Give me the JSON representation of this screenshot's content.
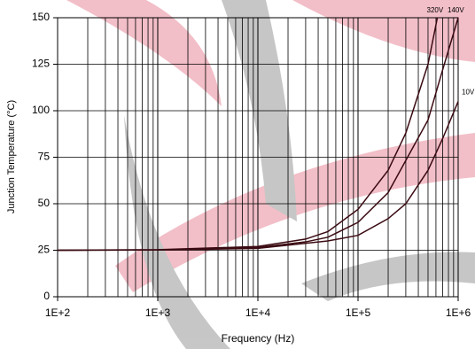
{
  "chart_data": {
    "type": "line",
    "xscale": "log",
    "grid": true,
    "minor_grid": true,
    "xlabel": "Frequency (Hz)",
    "ylabel": "Junction Temperature (°C)",
    "xlim": [
      100,
      1000000
    ],
    "ylim": [
      0,
      150
    ],
    "xticks": [
      {
        "value": 100,
        "label": "1E+2"
      },
      {
        "value": 1000,
        "label": "1E+3"
      },
      {
        "value": 10000,
        "label": "1E+4"
      },
      {
        "value": 100000,
        "label": "1E+5"
      },
      {
        "value": 1000000,
        "label": "1E+6"
      }
    ],
    "yticks": [
      0,
      25,
      50,
      75,
      100,
      125,
      150
    ],
    "series": [
      {
        "name": "320V",
        "color": "#3a0a12",
        "x": [
          100,
          1000,
          10000,
          30000,
          50000,
          100000,
          200000,
          300000,
          500000,
          620000
        ],
        "values": [
          25,
          25.3,
          27,
          31,
          35,
          47,
          68,
          88,
          125,
          150
        ]
      },
      {
        "name": "140V",
        "color": "#3a0a12",
        "x": [
          100,
          1000,
          10000,
          30000,
          50000,
          100000,
          200000,
          500000,
          700000,
          1000000
        ],
        "values": [
          25,
          25.2,
          26.5,
          29.5,
          32,
          40,
          56,
          95,
          122,
          150
        ]
      },
      {
        "name": "10V",
        "color": "#3a0a12",
        "x": [
          100,
          1000,
          10000,
          50000,
          100000,
          200000,
          300000,
          500000,
          700000,
          1000000
        ],
        "values": [
          25,
          25.1,
          26,
          30,
          33,
          42,
          50,
          68,
          85,
          105
        ]
      }
    ]
  }
}
